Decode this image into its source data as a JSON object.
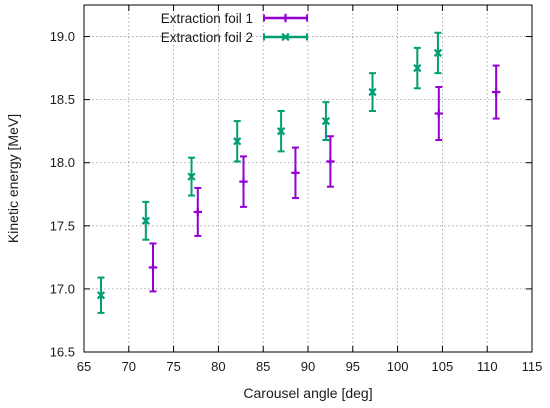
{
  "chart_data": {
    "type": "scatter",
    "xlabel": "Carousel angle [deg]",
    "ylabel": "Kinetic energy [MeV]",
    "xlim": [
      65,
      115
    ],
    "ylim": [
      16.5,
      19.25
    ],
    "x_ticks": [
      65,
      70,
      75,
      80,
      85,
      90,
      95,
      100,
      105,
      110,
      115
    ],
    "x_tick_labels": [
      "65",
      "70",
      "75",
      "80",
      "85",
      "90",
      "95",
      "100",
      "105",
      "110",
      "115"
    ],
    "y_ticks": [
      16.5,
      17.0,
      17.5,
      18.0,
      18.5,
      19.0
    ],
    "y_tick_labels": [
      "16.5",
      "17.0",
      "17.5",
      "18.0",
      "18.5",
      "19.0"
    ],
    "grid": true,
    "legend_position": "top-left",
    "series": [
      {
        "name": "Extraction foil 1",
        "color": "#9400d3",
        "marker": "plus",
        "points": [
          {
            "x": 72.7,
            "y": 17.17,
            "err": 0.19
          },
          {
            "x": 77.7,
            "y": 17.61,
            "err": 0.19
          },
          {
            "x": 82.8,
            "y": 17.85,
            "err": 0.2
          },
          {
            "x": 88.6,
            "y": 17.92,
            "err": 0.2
          },
          {
            "x": 92.5,
            "y": 18.01,
            "err": 0.2
          },
          {
            "x": 104.6,
            "y": 18.39,
            "err": 0.21
          },
          {
            "x": 111.0,
            "y": 18.56,
            "err": 0.21
          }
        ]
      },
      {
        "name": "Extraction foil 2",
        "color": "#009e73",
        "marker": "x",
        "points": [
          {
            "x": 66.9,
            "y": 16.95,
            "err": 0.14
          },
          {
            "x": 71.9,
            "y": 17.54,
            "err": 0.15
          },
          {
            "x": 77.0,
            "y": 17.89,
            "err": 0.15
          },
          {
            "x": 82.1,
            "y": 18.17,
            "err": 0.16
          },
          {
            "x": 87.0,
            "y": 18.25,
            "err": 0.16
          },
          {
            "x": 92.0,
            "y": 18.33,
            "err": 0.15
          },
          {
            "x": 97.2,
            "y": 18.56,
            "err": 0.15
          },
          {
            "x": 102.2,
            "y": 18.75,
            "err": 0.16
          },
          {
            "x": 104.5,
            "y": 18.87,
            "err": 0.16
          }
        ]
      }
    ]
  }
}
